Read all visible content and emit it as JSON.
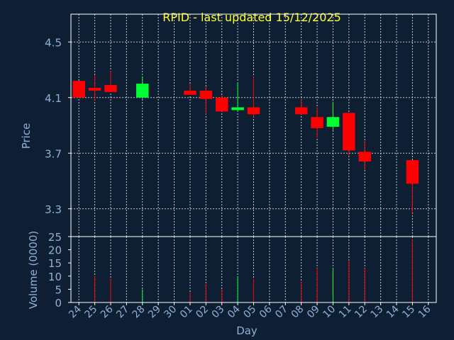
{
  "chart_data": {
    "type": "candlestick",
    "title": "RPID - last updated 15/12/2025",
    "xlabel": "Day",
    "ylabel": "Price",
    "volume_label": "Volume (0000)",
    "grid": true,
    "ylim": [
      3.1,
      4.7
    ],
    "yticks": [
      "3.3",
      "3.7",
      "4.1",
      "4.5"
    ],
    "volume_ylim": [
      0,
      25
    ],
    "volume_ticks": [
      "0",
      "5",
      "10",
      "15",
      "20",
      "25"
    ],
    "x_ticks": [
      "24",
      "25",
      "26",
      "27",
      "28",
      "29",
      "30",
      "01",
      "02",
      "03",
      "04",
      "05",
      "06",
      "07",
      "08",
      "09",
      "10",
      "11",
      "12",
      "13",
      "14",
      "15",
      "16"
    ],
    "colors": {
      "up": "#00ff33",
      "down": "#ff0000",
      "background": "#0f1f33",
      "grid": "#ffffff",
      "title": "#ffff33",
      "text": "#8fb0d8"
    },
    "candles": [
      {
        "day": "24",
        "open": 4.22,
        "high": 4.22,
        "low": 4.1,
        "close": 4.1,
        "volume": 0
      },
      {
        "day": "25",
        "open": 4.17,
        "high": 4.26,
        "low": 4.08,
        "close": 4.15,
        "volume": 10
      },
      {
        "day": "26",
        "open": 4.19,
        "high": 4.29,
        "low": 4.14,
        "close": 4.14,
        "volume": 9
      },
      {
        "day": "28",
        "open": 4.1,
        "high": 4.25,
        "low": 4.09,
        "close": 4.2,
        "volume": 5
      },
      {
        "day": "01",
        "open": 4.15,
        "high": 4.2,
        "low": 4.12,
        "close": 4.12,
        "volume": 4
      },
      {
        "day": "02",
        "open": 4.15,
        "high": 4.18,
        "low": 3.98,
        "close": 4.09,
        "volume": 7
      },
      {
        "day": "03",
        "open": 4.1,
        "high": 4.12,
        "low": 4.0,
        "close": 4.0,
        "volume": 5
      },
      {
        "day": "04",
        "open": 4.01,
        "high": 4.21,
        "low": 4.0,
        "close": 4.03,
        "volume": 10
      },
      {
        "day": "05",
        "open": 4.03,
        "high": 4.25,
        "low": 3.96,
        "close": 3.98,
        "volume": 9
      },
      {
        "day": "08",
        "open": 4.03,
        "high": 4.09,
        "low": 3.98,
        "close": 3.98,
        "volume": 8
      },
      {
        "day": "09",
        "open": 3.96,
        "high": 4.03,
        "low": 3.81,
        "close": 3.88,
        "volume": 13
      },
      {
        "day": "10",
        "open": 3.89,
        "high": 4.07,
        "low": 3.86,
        "close": 3.96,
        "volume": 13
      },
      {
        "day": "11",
        "open": 3.99,
        "high": 3.99,
        "low": 3.68,
        "close": 3.72,
        "volume": 16
      },
      {
        "day": "12",
        "open": 3.71,
        "high": 3.79,
        "low": 3.58,
        "close": 3.64,
        "volume": 13
      },
      {
        "day": "15",
        "open": 3.65,
        "high": 3.65,
        "low": 3.27,
        "close": 3.48,
        "volume": 24
      }
    ]
  }
}
